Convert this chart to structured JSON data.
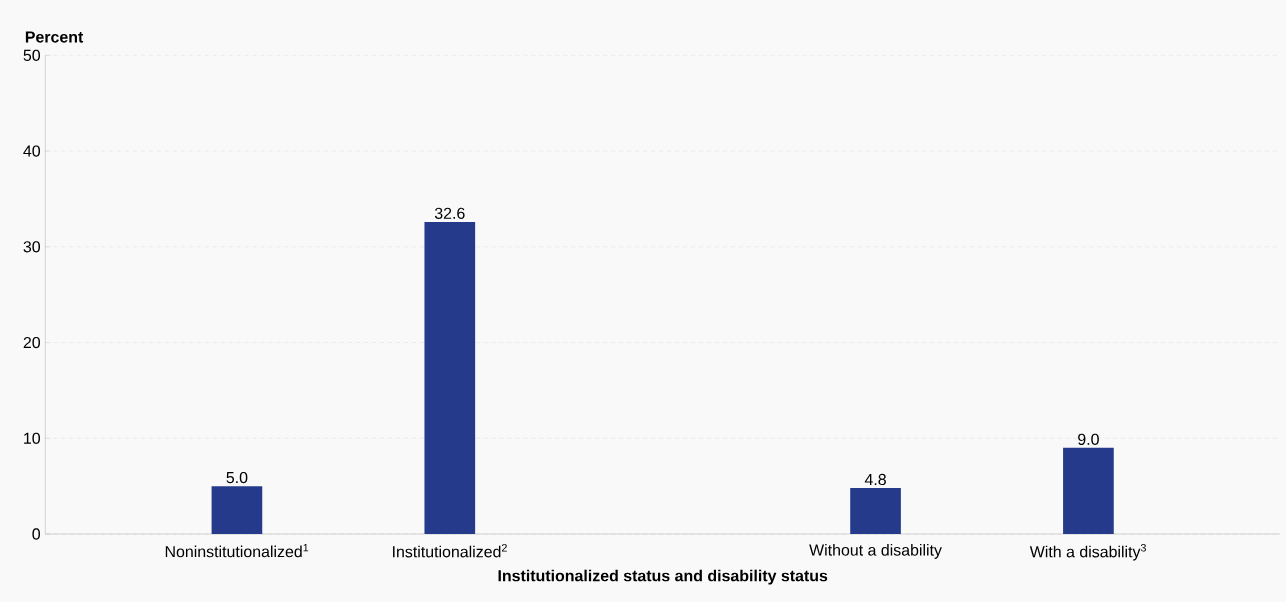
{
  "chart_data": {
    "type": "bar",
    "xlabel": "Institutionalized status and disability status",
    "ylabel": "Percent",
    "categories": [
      "Noninstitutionalized$^{1}$",
      "Institutionalized$^{2}$",
      null,
      "Without a disability",
      "With a disability$^{3}$"
    ],
    "values": [
      5.0,
      32.6,
      null,
      4.8,
      9.0
    ],
    "value_labels": [
      "5.0",
      "32.6",
      null,
      "4.8",
      "9.0"
    ],
    "color": "#253a8a",
    "ylim": [
      0,
      50
    ],
    "yticks": [
      0,
      10,
      20,
      30,
      40,
      50
    ],
    "grid": "y"
  }
}
